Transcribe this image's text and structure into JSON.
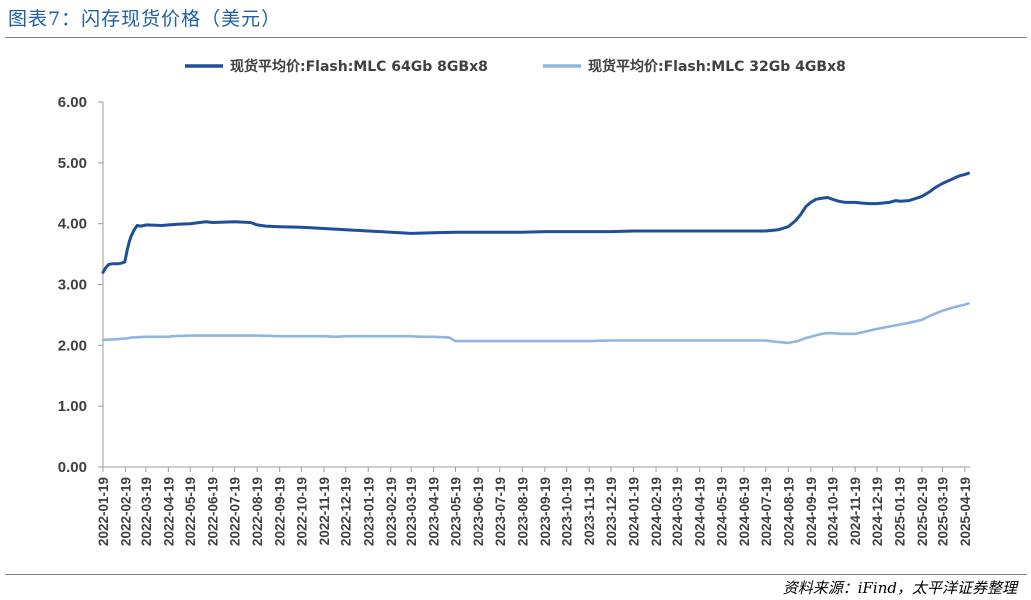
{
  "header": {
    "title": "图表7：闪存现货价格（美元）"
  },
  "footer": {
    "source": "资料来源：iFind，太平洋证券整理"
  },
  "colors": {
    "series_dark": "#1f4e9a",
    "series_light": "#8db6e0",
    "axis": "#9e9e9e",
    "title": "#1f5fa6"
  },
  "chart_data": {
    "type": "line",
    "title": "",
    "xlabel": "",
    "ylabel": "",
    "ylim": [
      0,
      6
    ],
    "yticks": [
      "0.00",
      "1.00",
      "2.00",
      "3.00",
      "4.00",
      "5.00",
      "6.00"
    ],
    "grid": false,
    "legend_position": "top",
    "xticks": [
      "2022-01-19",
      "2022-02-19",
      "2022-03-19",
      "2022-04-19",
      "2022-05-19",
      "2022-06-19",
      "2022-07-19",
      "2022-08-19",
      "2022-09-19",
      "2022-10-19",
      "2022-11-19",
      "2022-12-19",
      "2023-01-19",
      "2023-02-19",
      "2023-03-19",
      "2023-04-19",
      "2023-05-19",
      "2023-06-19",
      "2023-07-19",
      "2023-08-19",
      "2023-09-19",
      "2023-10-19",
      "2023-11-19",
      "2023-12-19",
      "2024-01-19",
      "2024-02-19",
      "2024-03-19",
      "2024-04-19",
      "2024-05-19",
      "2024-06-19",
      "2024-07-19",
      "2024-08-19",
      "2024-09-19",
      "2024-10-19",
      "2024-11-19",
      "2024-12-19",
      "2025-01-19",
      "2025-02-19",
      "2025-03-19",
      "2025-04-19"
    ],
    "series": [
      {
        "name": "现货平均价:Flash:MLC 64Gb 8GBx8",
        "color": "#1f4e9a",
        "points": [
          [
            "2022-01-19",
            3.2
          ],
          [
            "2022-01-23",
            3.28
          ],
          [
            "2022-01-27",
            3.33
          ],
          [
            "2022-02-01",
            3.34
          ],
          [
            "2022-02-08",
            3.34
          ],
          [
            "2022-02-13",
            3.35
          ],
          [
            "2022-02-18",
            3.37
          ],
          [
            "2022-02-21",
            3.55
          ],
          [
            "2022-02-24",
            3.7
          ],
          [
            "2022-02-27",
            3.8
          ],
          [
            "2022-03-03",
            3.9
          ],
          [
            "2022-03-07",
            3.97
          ],
          [
            "2022-03-12",
            3.96
          ],
          [
            "2022-03-20",
            3.98
          ],
          [
            "2022-04-10",
            3.97
          ],
          [
            "2022-04-20",
            3.98
          ],
          [
            "2022-05-01",
            3.99
          ],
          [
            "2022-05-19",
            4.0
          ],
          [
            "2022-06-01",
            4.02
          ],
          [
            "2022-06-10",
            4.03
          ],
          [
            "2022-06-19",
            4.02
          ],
          [
            "2022-07-19",
            4.03
          ],
          [
            "2022-08-10",
            4.02
          ],
          [
            "2022-08-19",
            3.98
          ],
          [
            "2022-08-31",
            3.96
          ],
          [
            "2022-09-19",
            3.95
          ],
          [
            "2022-10-19",
            3.94
          ],
          [
            "2022-11-19",
            3.92
          ],
          [
            "2022-12-19",
            3.9
          ],
          [
            "2023-01-19",
            3.88
          ],
          [
            "2023-02-19",
            3.86
          ],
          [
            "2023-03-19",
            3.84
          ],
          [
            "2023-04-19",
            3.85
          ],
          [
            "2023-05-19",
            3.86
          ],
          [
            "2023-06-19",
            3.86
          ],
          [
            "2023-07-19",
            3.86
          ],
          [
            "2023-08-19",
            3.86
          ],
          [
            "2023-09-19",
            3.87
          ],
          [
            "2023-10-19",
            3.87
          ],
          [
            "2023-11-19",
            3.87
          ],
          [
            "2023-12-19",
            3.87
          ],
          [
            "2024-01-19",
            3.88
          ],
          [
            "2024-02-19",
            3.88
          ],
          [
            "2024-03-19",
            3.88
          ],
          [
            "2024-04-19",
            3.88
          ],
          [
            "2024-05-19",
            3.88
          ],
          [
            "2024-06-19",
            3.88
          ],
          [
            "2024-07-19",
            3.88
          ],
          [
            "2024-08-05",
            3.9
          ],
          [
            "2024-08-19",
            3.95
          ],
          [
            "2024-08-29",
            4.05
          ],
          [
            "2024-09-05",
            4.15
          ],
          [
            "2024-09-12",
            4.28
          ],
          [
            "2024-09-19",
            4.35
          ],
          [
            "2024-09-26",
            4.4
          ],
          [
            "2024-10-05",
            4.42
          ],
          [
            "2024-10-12",
            4.43
          ],
          [
            "2024-10-19",
            4.4
          ],
          [
            "2024-10-27",
            4.37
          ],
          [
            "2024-11-05",
            4.35
          ],
          [
            "2024-11-19",
            4.35
          ],
          [
            "2024-11-27",
            4.34
          ],
          [
            "2024-12-08",
            4.33
          ],
          [
            "2024-12-19",
            4.33
          ],
          [
            "2025-01-05",
            4.35
          ],
          [
            "2025-01-14",
            4.38
          ],
          [
            "2025-01-19",
            4.37
          ],
          [
            "2025-02-01",
            4.38
          ],
          [
            "2025-02-12",
            4.42
          ],
          [
            "2025-02-19",
            4.45
          ],
          [
            "2025-03-01",
            4.52
          ],
          [
            "2025-03-10",
            4.6
          ],
          [
            "2025-03-19",
            4.66
          ],
          [
            "2025-04-01",
            4.73
          ],
          [
            "2025-04-10",
            4.78
          ],
          [
            "2025-04-19",
            4.81
          ],
          [
            "2025-04-24",
            4.83
          ]
        ]
      },
      {
        "name": "现货平均价:Flash:MLC 32Gb 4GBx8",
        "color": "#8db6e0",
        "points": [
          [
            "2022-01-19",
            2.09
          ],
          [
            "2022-02-05",
            2.1
          ],
          [
            "2022-02-19",
            2.11
          ],
          [
            "2022-03-01",
            2.13
          ],
          [
            "2022-03-19",
            2.14
          ],
          [
            "2022-04-19",
            2.14
          ],
          [
            "2022-04-25",
            2.15
          ],
          [
            "2022-05-19",
            2.16
          ],
          [
            "2022-06-19",
            2.16
          ],
          [
            "2022-07-19",
            2.16
          ],
          [
            "2022-08-19",
            2.16
          ],
          [
            "2022-09-19",
            2.15
          ],
          [
            "2022-10-19",
            2.15
          ],
          [
            "2022-11-19",
            2.15
          ],
          [
            "2022-12-05",
            2.14
          ],
          [
            "2022-12-19",
            2.15
          ],
          [
            "2023-01-19",
            2.15
          ],
          [
            "2023-02-19",
            2.15
          ],
          [
            "2023-03-19",
            2.15
          ],
          [
            "2023-04-01",
            2.14
          ],
          [
            "2023-04-19",
            2.14
          ],
          [
            "2023-05-10",
            2.13
          ],
          [
            "2023-05-19",
            2.07
          ],
          [
            "2023-06-19",
            2.07
          ],
          [
            "2023-07-19",
            2.07
          ],
          [
            "2023-08-19",
            2.07
          ],
          [
            "2023-09-19",
            2.07
          ],
          [
            "2023-10-19",
            2.07
          ],
          [
            "2023-11-19",
            2.07
          ],
          [
            "2023-12-19",
            2.08
          ],
          [
            "2024-01-19",
            2.08
          ],
          [
            "2024-02-19",
            2.08
          ],
          [
            "2024-03-19",
            2.08
          ],
          [
            "2024-04-19",
            2.08
          ],
          [
            "2024-05-19",
            2.08
          ],
          [
            "2024-06-19",
            2.08
          ],
          [
            "2024-07-19",
            2.08
          ],
          [
            "2024-08-01",
            2.06
          ],
          [
            "2024-08-19",
            2.04
          ],
          [
            "2024-09-01",
            2.07
          ],
          [
            "2024-09-12",
            2.12
          ],
          [
            "2024-09-19",
            2.14
          ],
          [
            "2024-10-01",
            2.18
          ],
          [
            "2024-10-10",
            2.2
          ],
          [
            "2024-10-19",
            2.2
          ],
          [
            "2024-11-01",
            2.19
          ],
          [
            "2024-11-19",
            2.19
          ],
          [
            "2024-12-01",
            2.22
          ],
          [
            "2024-12-19",
            2.27
          ],
          [
            "2025-01-05",
            2.31
          ],
          [
            "2025-01-19",
            2.34
          ],
          [
            "2025-02-01",
            2.37
          ],
          [
            "2025-02-19",
            2.42
          ],
          [
            "2025-03-01",
            2.48
          ],
          [
            "2025-03-19",
            2.57
          ],
          [
            "2025-04-05",
            2.63
          ],
          [
            "2025-04-19",
            2.67
          ],
          [
            "2025-04-24",
            2.69
          ]
        ]
      }
    ]
  }
}
